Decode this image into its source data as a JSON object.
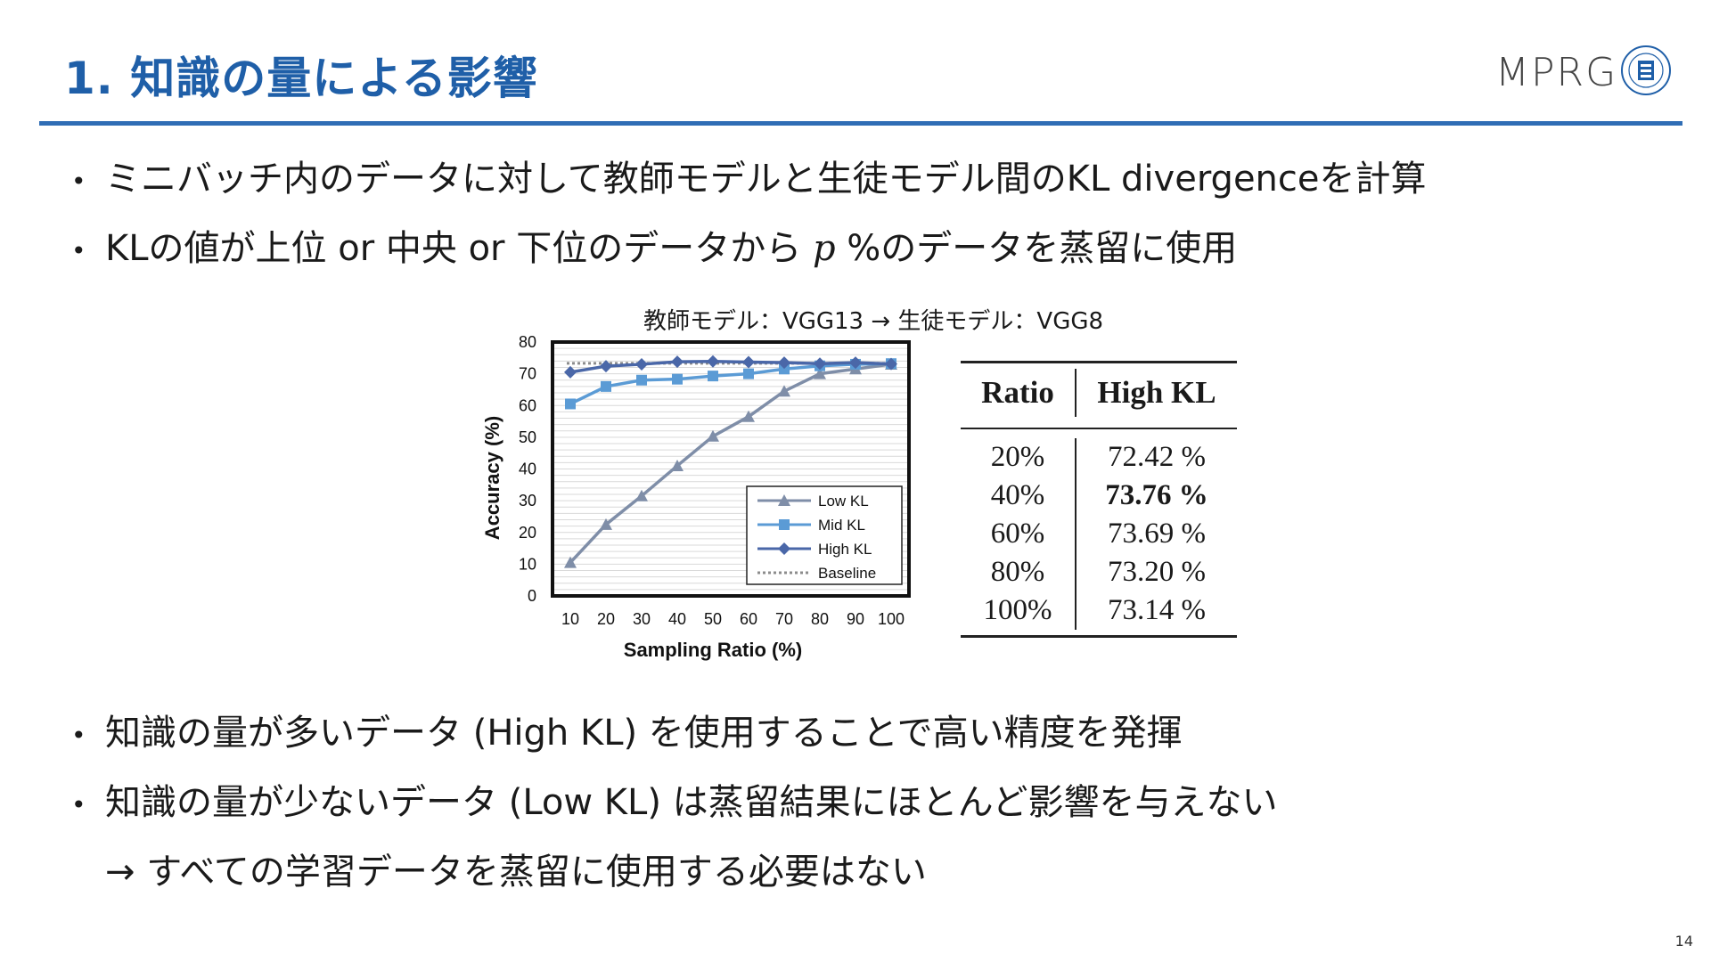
{
  "slide": {
    "title": "1. 知識の量による影響",
    "page_number": "14",
    "logo_text": "MPRG",
    "colors": {
      "title": "#1f5fa8",
      "rule": "#2f6db5"
    }
  },
  "bullets_top": [
    "ミニバッチ内のデータに対して教師モデルと生徒モデル間のKL divergenceを計算",
    {
      "pre": "KLの値が上位 or 中央 or 下位のデータから ",
      "var": "p",
      "post": " %のデータを蒸留に使用"
    }
  ],
  "bullets_bottom": [
    "知識の量が多いデータ (High KL) を使用することで高い精度を発揮",
    "知識の量が少ないデータ (Low KL) は蒸留結果にほとんど影響を与えない"
  ],
  "conclusion": "→ すべての学習データを蒸留に使用する必要はない",
  "chart_caption": "教師モデル：VGG13 → 生徒モデル：VGG8",
  "chart_data": {
    "type": "line",
    "xlabel": "Sampling Ratio (%)",
    "ylabel": "Accuracy (%)",
    "x": [
      10,
      20,
      30,
      40,
      50,
      60,
      70,
      80,
      90,
      100
    ],
    "ylim": [
      0,
      80
    ],
    "yticks": [
      0,
      10,
      20,
      30,
      40,
      50,
      60,
      70,
      80
    ],
    "legend_position": "bottom-right",
    "series": [
      {
        "name": "Low KL",
        "marker": "triangle",
        "color": "#7f8ea8",
        "values": [
          10.5,
          22.5,
          31.5,
          41,
          50.3,
          56.5,
          64.5,
          70,
          71.5,
          73
        ]
      },
      {
        "name": "Mid KL",
        "marker": "square",
        "color": "#5b9bd5",
        "values": [
          60.5,
          66,
          68,
          68.3,
          69.3,
          70,
          71.5,
          72.5,
          73,
          73.2
        ]
      },
      {
        "name": "High KL",
        "marker": "diamond",
        "color": "#4a67a8",
        "values": [
          70.5,
          72.4,
          73,
          73.8,
          73.9,
          73.7,
          73.5,
          73.2,
          73.5,
          73.1
        ]
      },
      {
        "name": "Baseline",
        "marker": "none",
        "color": "#8c8c8c",
        "dashed": true,
        "values": [
          73.3,
          73.3,
          73.3,
          73.3,
          73.3,
          73.3,
          73.3,
          73.3,
          73.3,
          73.3
        ]
      }
    ]
  },
  "table": {
    "headers": [
      "Ratio",
      "High KL"
    ],
    "rows": [
      {
        "ratio": "20%",
        "value": "72.42 %",
        "bold": false
      },
      {
        "ratio": "40%",
        "value": "73.76 %",
        "bold": true
      },
      {
        "ratio": "60%",
        "value": "73.69 %",
        "bold": false
      },
      {
        "ratio": "80%",
        "value": "73.20 %",
        "bold": false
      },
      {
        "ratio": "100%",
        "value": "73.14 %",
        "bold": false
      }
    ]
  }
}
